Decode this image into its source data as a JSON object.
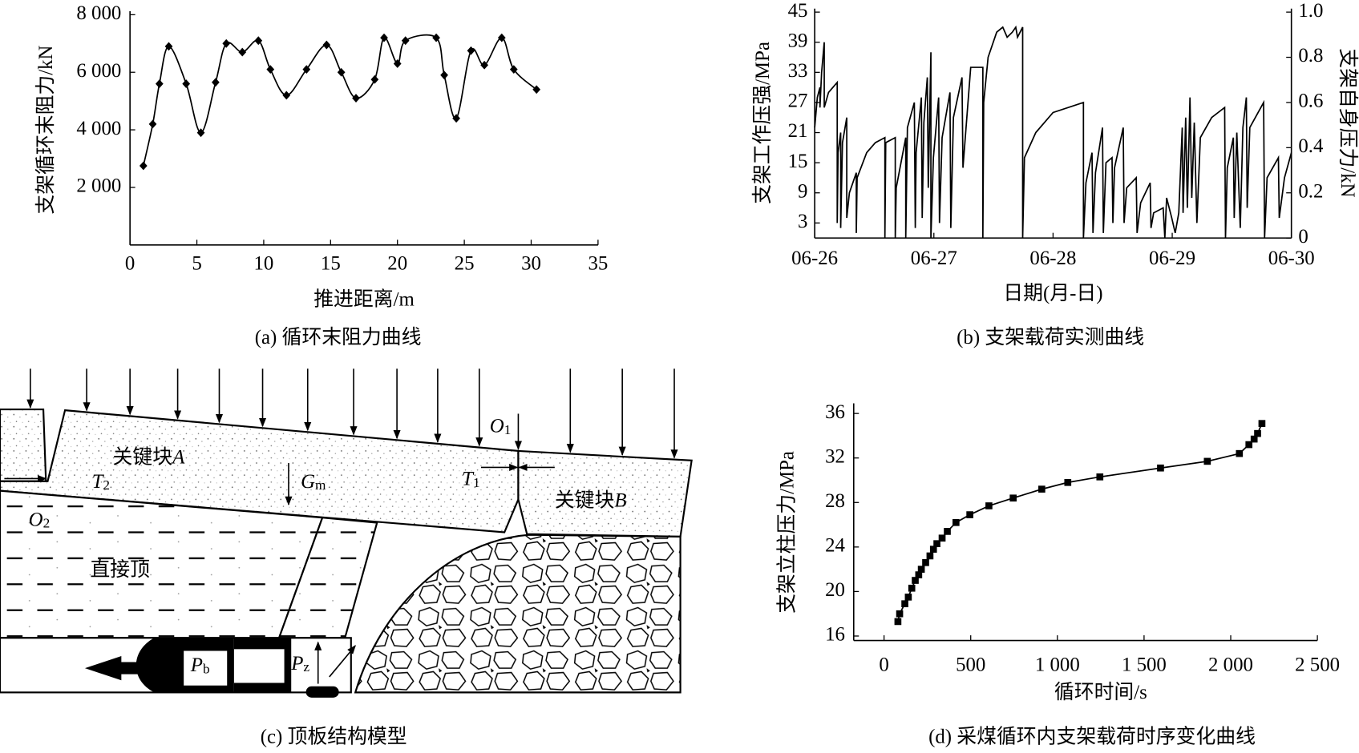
{
  "chart_data": [
    {
      "type": "line",
      "caption": "(a)  循环末阻力曲线",
      "xlabel": "推进距离/m",
      "ylabel": "支架循环末阻力/kN",
      "x": [
        1.0,
        1.7,
        2.2,
        2.9,
        4.2,
        5.3,
        6.4,
        7.2,
        8.4,
        9.6,
        10.5,
        11.7,
        13.2,
        14.7,
        15.8,
        16.9,
        18.3,
        19.0,
        20.0,
        20.6,
        22.9,
        23.5,
        24.4,
        25.5,
        26.5,
        27.8,
        28.7,
        30.4
      ],
      "values": [
        2750,
        4200,
        5600,
        6900,
        5600,
        3900,
        5650,
        7000,
        6700,
        7100,
        6100,
        5200,
        6100,
        6950,
        6000,
        5100,
        5750,
        7200,
        6300,
        7100,
        7200,
        5900,
        4400,
        6750,
        6250,
        7200,
        6100,
        5400
      ],
      "color": "#000000",
      "marker": "diamond",
      "smooth": true,
      "xlim": [
        0,
        35
      ],
      "xticks": [
        0,
        5,
        10,
        15,
        20,
        25,
        30,
        35
      ],
      "ylim": [
        0,
        8000
      ],
      "yticks": [
        {
          "value": 2000,
          "label": "2 000"
        },
        {
          "value": 4000,
          "label": "4 000"
        },
        {
          "value": 6000,
          "label": "6 000"
        },
        {
          "value": 8000,
          "label": "8 000"
        }
      ]
    },
    {
      "type": "line",
      "caption": "(b)  支架载荷实测曲线",
      "xlabel": "日期(月-日)",
      "ylabel": "支架工作压强/MPa",
      "y2label": "支架自身压力/kN",
      "x": [
        0,
        0.022,
        0.044,
        0.044,
        0.058,
        0.08,
        0.08,
        0.116,
        0.189,
        0.189,
        0.196,
        0.218,
        0.218,
        0.233,
        0.269,
        0.269,
        0.291,
        0.349,
        0.349,
        0.356,
        0.436,
        0.509,
        0.589,
        0.589,
        0.596,
        0.676,
        0.676,
        0.684,
        0.764,
        0.764,
        0.778,
        0.836,
        0.844,
        0.851,
        0.895,
        0.902,
        0.916,
        0.945,
        0.953,
        0.975,
        0.975,
        0.996,
        1.04,
        1.047,
        1.069,
        1.135,
        1.142,
        1.164,
        1.236,
        1.244,
        1.309,
        1.411,
        1.411,
        1.418,
        1.455,
        1.527,
        1.578,
        1.615,
        1.658,
        1.687,
        1.702,
        1.745,
        1.745,
        1.76,
        1.855,
        2.0,
        2.255,
        2.255,
        2.276,
        2.327,
        2.335,
        2.356,
        2.415,
        2.422,
        2.444,
        2.495,
        2.502,
        2.516,
        2.589,
        2.596,
        2.618,
        2.698,
        2.705,
        2.735,
        2.815,
        2.822,
        2.844,
        2.924,
        2.938,
        2.953,
        2.996,
        3.025,
        3.055,
        3.084,
        3.091,
        3.113,
        3.127,
        3.149,
        3.164,
        3.185,
        3.207,
        3.236,
        3.331,
        3.44,
        3.447,
        3.462,
        3.513,
        3.52,
        3.542,
        3.571,
        3.593,
        3.622,
        3.629,
        3.651,
        3.767,
        3.775,
        3.796,
        3.891,
        3.898,
        3.942,
        4.0
      ],
      "values": [
        22,
        28,
        30,
        26,
        33,
        39,
        26,
        29,
        31,
        3,
        17,
        21,
        2,
        19,
        24,
        4,
        9,
        13,
        1,
        12,
        17,
        19,
        20,
        0,
        19,
        20,
        0,
        10,
        20,
        0,
        22,
        27,
        2,
        17,
        28,
        4,
        23,
        32,
        10,
        37,
        0,
        16,
        28,
        3,
        20,
        29,
        2,
        24,
        32,
        14,
        34,
        34,
        0,
        27,
        36,
        41,
        42,
        40,
        41,
        42,
        40,
        42,
        0,
        16,
        21,
        25,
        27,
        0,
        11,
        17,
        1,
        13,
        22,
        1,
        15,
        16,
        3,
        14,
        22,
        3,
        10,
        12,
        1,
        7,
        11,
        2,
        5,
        6,
        0,
        8,
        4,
        1,
        5,
        22,
        5,
        24,
        6,
        28,
        8,
        23,
        3,
        20,
        24,
        26,
        0,
        14,
        20,
        4,
        21,
        2,
        22,
        28,
        6,
        22,
        27,
        0,
        12,
        16,
        4,
        12,
        17
      ],
      "color": "#000000",
      "xlim": [
        0,
        4
      ],
      "xticks": [
        {
          "value": 0,
          "label": "06-26"
        },
        {
          "value": 1,
          "label": "06-27"
        },
        {
          "value": 2,
          "label": "06-28"
        },
        {
          "value": 3,
          "label": "06-29"
        },
        {
          "value": 4,
          "label": "06-30"
        }
      ],
      "ylim": [
        0,
        45
      ],
      "yticks": [
        3,
        9,
        15,
        21,
        27,
        33,
        39,
        45
      ],
      "y2lim": [
        0,
        1
      ],
      "y2ticks": [
        0,
        0.2,
        0.4,
        0.6,
        0.8,
        {
          "value": 1,
          "label": "1.0"
        }
      ]
    },
    {
      "type": "line",
      "caption": "(d) 采煤循环内支架载荷时序变化曲线",
      "xlabel": "循环时间/s",
      "ylabel": "支架立柱压力/MPa",
      "x": [
        80,
        90,
        120,
        140,
        160,
        180,
        200,
        215,
        240,
        265,
        285,
        305,
        335,
        365,
        415,
        495,
        605,
        745,
        910,
        1060,
        1245,
        1595,
        1865,
        2050,
        2105,
        2135,
        2155,
        2180
      ],
      "values": [
        17.3,
        18.0,
        18.9,
        19.5,
        20.3,
        21.0,
        21.5,
        22.0,
        22.6,
        23.2,
        23.8,
        24.3,
        24.8,
        25.4,
        26.2,
        26.9,
        27.7,
        28.4,
        29.2,
        29.8,
        30.3,
        31.1,
        31.7,
        32.4,
        33.2,
        33.7,
        34.2,
        35.1
      ],
      "color": "#000000",
      "marker": "square",
      "smooth": false,
      "xlim": [
        -175,
        2500
      ],
      "xticks": [
        0,
        500,
        {
          "value": 1000,
          "label": "1 000"
        },
        {
          "value": 1500,
          "label": "1 500"
        },
        {
          "value": 2000,
          "label": "2 000"
        },
        {
          "value": 2500,
          "label": "2 500"
        }
      ],
      "ylim": [
        15.6,
        36.6
      ],
      "yticks": [
        16,
        20,
        24,
        28,
        32,
        36
      ]
    }
  ],
  "diagram": {
    "caption": "(c) 顶板结构模型",
    "block_a": [
      "关键块",
      "A"
    ],
    "block_b": [
      "关键块",
      "B"
    ],
    "immediate_roof": "直接顶",
    "o1": [
      "O",
      "1"
    ],
    "o2": [
      "O",
      "2"
    ],
    "t1": [
      "T",
      "1"
    ],
    "t2": [
      "T",
      "2"
    ],
    "gm": [
      "G",
      "m"
    ],
    "pb": [
      "P",
      "b"
    ],
    "pz": [
      "P",
      "z"
    ]
  }
}
